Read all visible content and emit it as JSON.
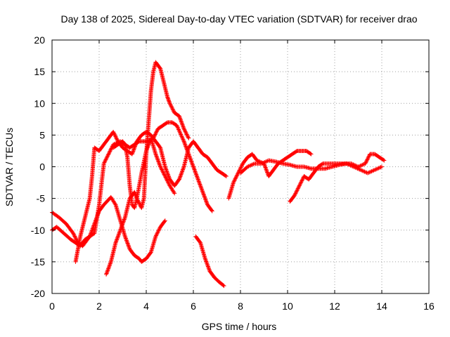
{
  "chart_data": {
    "type": "scatter",
    "title": "Day 138 of 2025, Sidereal Day-to-day VTEC variation (SDTVAR) for receiver drao",
    "xlabel": "GPS time / hours",
    "ylabel": "SDTVAR / TECUs",
    "xlim": [
      0,
      16
    ],
    "ylim": [
      -20,
      20
    ],
    "xticks": [
      0,
      2,
      4,
      6,
      8,
      10,
      12,
      14,
      16
    ],
    "yticks": [
      -20,
      -15,
      -10,
      -5,
      0,
      5,
      10,
      15,
      20
    ],
    "grid": true,
    "marker": "plus",
    "color": "#ff0000",
    "series": [
      {
        "x": [
          0.0,
          0.3,
          0.6,
          0.9,
          1.1,
          1.3,
          1.6,
          1.8,
          2.0,
          2.2,
          2.5,
          2.7,
          2.9,
          3.1,
          3.3,
          3.5,
          3.7,
          3.8,
          4.0,
          4.2,
          4.4,
          4.6,
          4.8
        ],
        "y": [
          -7.2,
          -8.0,
          -9.0,
          -10.5,
          -12.0,
          -12.5,
          -11.0,
          -9.0,
          -7.0,
          -6.0,
          -4.8,
          -6.0,
          -8.5,
          -11.0,
          -13.0,
          -14.0,
          -14.5,
          -15.0,
          -14.5,
          -13.5,
          -11.0,
          -9.5,
          -8.5
        ]
      },
      {
        "x": [
          0.0,
          0.2,
          0.5,
          0.8,
          1.0,
          1.2,
          1.4,
          1.6,
          1.8,
          2.0,
          2.2,
          2.4,
          2.6,
          2.9,
          3.1,
          3.3,
          3.5,
          3.7,
          3.9,
          4.1,
          4.3,
          4.5,
          4.7,
          4.9,
          5.1,
          5.3,
          5.6,
          5.8,
          6.0,
          6.2,
          6.4,
          6.6,
          6.8
        ],
        "y": [
          -10.0,
          -9.5,
          -10.5,
          -11.5,
          -12.0,
          -12.5,
          -11.5,
          -11.0,
          -10.5,
          -6.0,
          0.5,
          2.0,
          3.5,
          4.0,
          3.5,
          3.0,
          3.5,
          4.0,
          4.0,
          4.0,
          4.5,
          6.0,
          6.5,
          7.0,
          7.0,
          6.5,
          4.0,
          2.0,
          0.0,
          -2.0,
          -4.0,
          -6.0,
          -7.0
        ]
      },
      {
        "x": [
          1.0,
          1.1,
          1.2,
          1.4,
          1.6,
          1.7,
          1.8,
          2.0,
          2.2,
          2.4,
          2.6,
          2.8,
          3.0,
          3.2,
          3.4,
          3.6,
          3.8,
          4.0,
          4.2,
          4.4,
          4.6,
          4.8,
          5.0,
          5.2,
          5.4,
          5.6,
          5.8,
          6.0,
          6.2,
          6.4,
          6.6,
          6.8,
          7.0,
          7.2,
          7.4
        ],
        "y": [
          -15.0,
          -13.0,
          -11.0,
          -8.0,
          -5.0,
          -1.5,
          3.0,
          2.5,
          3.5,
          4.5,
          5.5,
          4.0,
          3.0,
          2.5,
          2.0,
          4.0,
          5.0,
          5.5,
          5.0,
          4.0,
          3.0,
          0.0,
          -2.0,
          -3.0,
          -2.0,
          0.0,
          3.0,
          4.0,
          3.0,
          2.0,
          1.5,
          0.5,
          -0.5,
          -1.0,
          -1.5
        ]
      },
      {
        "x": [
          2.3,
          2.5,
          2.7,
          2.9,
          3.1,
          3.3,
          3.5,
          3.6,
          3.8,
          3.9,
          4.0,
          4.1,
          4.2,
          4.3,
          4.4,
          4.5,
          4.6,
          4.7,
          4.8,
          4.9,
          5.0,
          5.2,
          5.4,
          5.6,
          5.8
        ],
        "y": [
          -17.0,
          -15.0,
          -12.0,
          -10.0,
          -8.0,
          -5.0,
          -4.0,
          -5.0,
          -6.5,
          -5.0,
          2.0,
          7.0,
          12.0,
          15.0,
          16.5,
          16.0,
          15.5,
          14.0,
          12.5,
          11.0,
          10.0,
          8.5,
          8.0,
          6.0,
          4.5
        ]
      },
      {
        "x": [
          2.6,
          2.8,
          3.0,
          3.1,
          3.2,
          3.3,
          3.4,
          3.5,
          3.6,
          3.8,
          4.0,
          4.2,
          4.4,
          4.6,
          4.8,
          5.0,
          5.2
        ],
        "y": [
          3.0,
          3.5,
          4.0,
          3.5,
          1.5,
          -3.0,
          -6.0,
          -6.5,
          -5.0,
          -1.0,
          2.5,
          4.5,
          2.0,
          0.0,
          -1.5,
          -3.0,
          -4.2
        ]
      },
      {
        "x": [
          6.1,
          6.3,
          6.5,
          6.7,
          6.9,
          7.1,
          7.3
        ],
        "y": [
          -11.0,
          -12.0,
          -14.5,
          -16.5,
          -17.5,
          -18.2,
          -18.8
        ]
      },
      {
        "x": [
          7.5,
          7.7,
          7.9,
          8.1,
          8.3,
          8.5,
          8.7,
          9.0,
          9.2,
          9.4,
          9.6,
          9.8,
          10.0,
          10.2,
          10.4,
          10.6,
          10.8,
          11.0
        ],
        "y": [
          -5.0,
          -2.5,
          -1.0,
          0.5,
          1.5,
          2.0,
          1.0,
          0.5,
          -1.5,
          -0.5,
          0.5,
          1.0,
          1.5,
          2.0,
          2.5,
          2.5,
          2.5,
          2.0
        ]
      },
      {
        "x": [
          8.0,
          8.3,
          8.6,
          8.9,
          9.2,
          9.5,
          9.8,
          10.1,
          10.4,
          10.7,
          11.0,
          11.3,
          11.6,
          11.9,
          12.2,
          12.5,
          12.8,
          13.1,
          13.4,
          13.7,
          14.0
        ],
        "y": [
          -1.0,
          0.0,
          0.5,
          0.5,
          1.0,
          0.8,
          0.5,
          0.3,
          0.0,
          0.0,
          -0.3,
          -0.3,
          -0.3,
          0.0,
          0.3,
          0.5,
          0.0,
          -0.5,
          -1.0,
          -0.5,
          0.0
        ]
      },
      {
        "x": [
          10.1,
          10.3,
          10.5,
          10.7,
          10.9,
          11.1,
          11.3,
          11.5,
          11.8,
          12.1,
          12.4,
          12.7,
          13.0,
          13.3,
          13.5,
          13.7,
          13.9,
          14.1
        ],
        "y": [
          -5.5,
          -4.5,
          -3.0,
          -1.5,
          -2.0,
          -1.0,
          0.0,
          0.5,
          0.5,
          0.5,
          0.5,
          0.5,
          0.0,
          0.5,
          2.0,
          2.0,
          1.5,
          1.0
        ]
      }
    ]
  }
}
